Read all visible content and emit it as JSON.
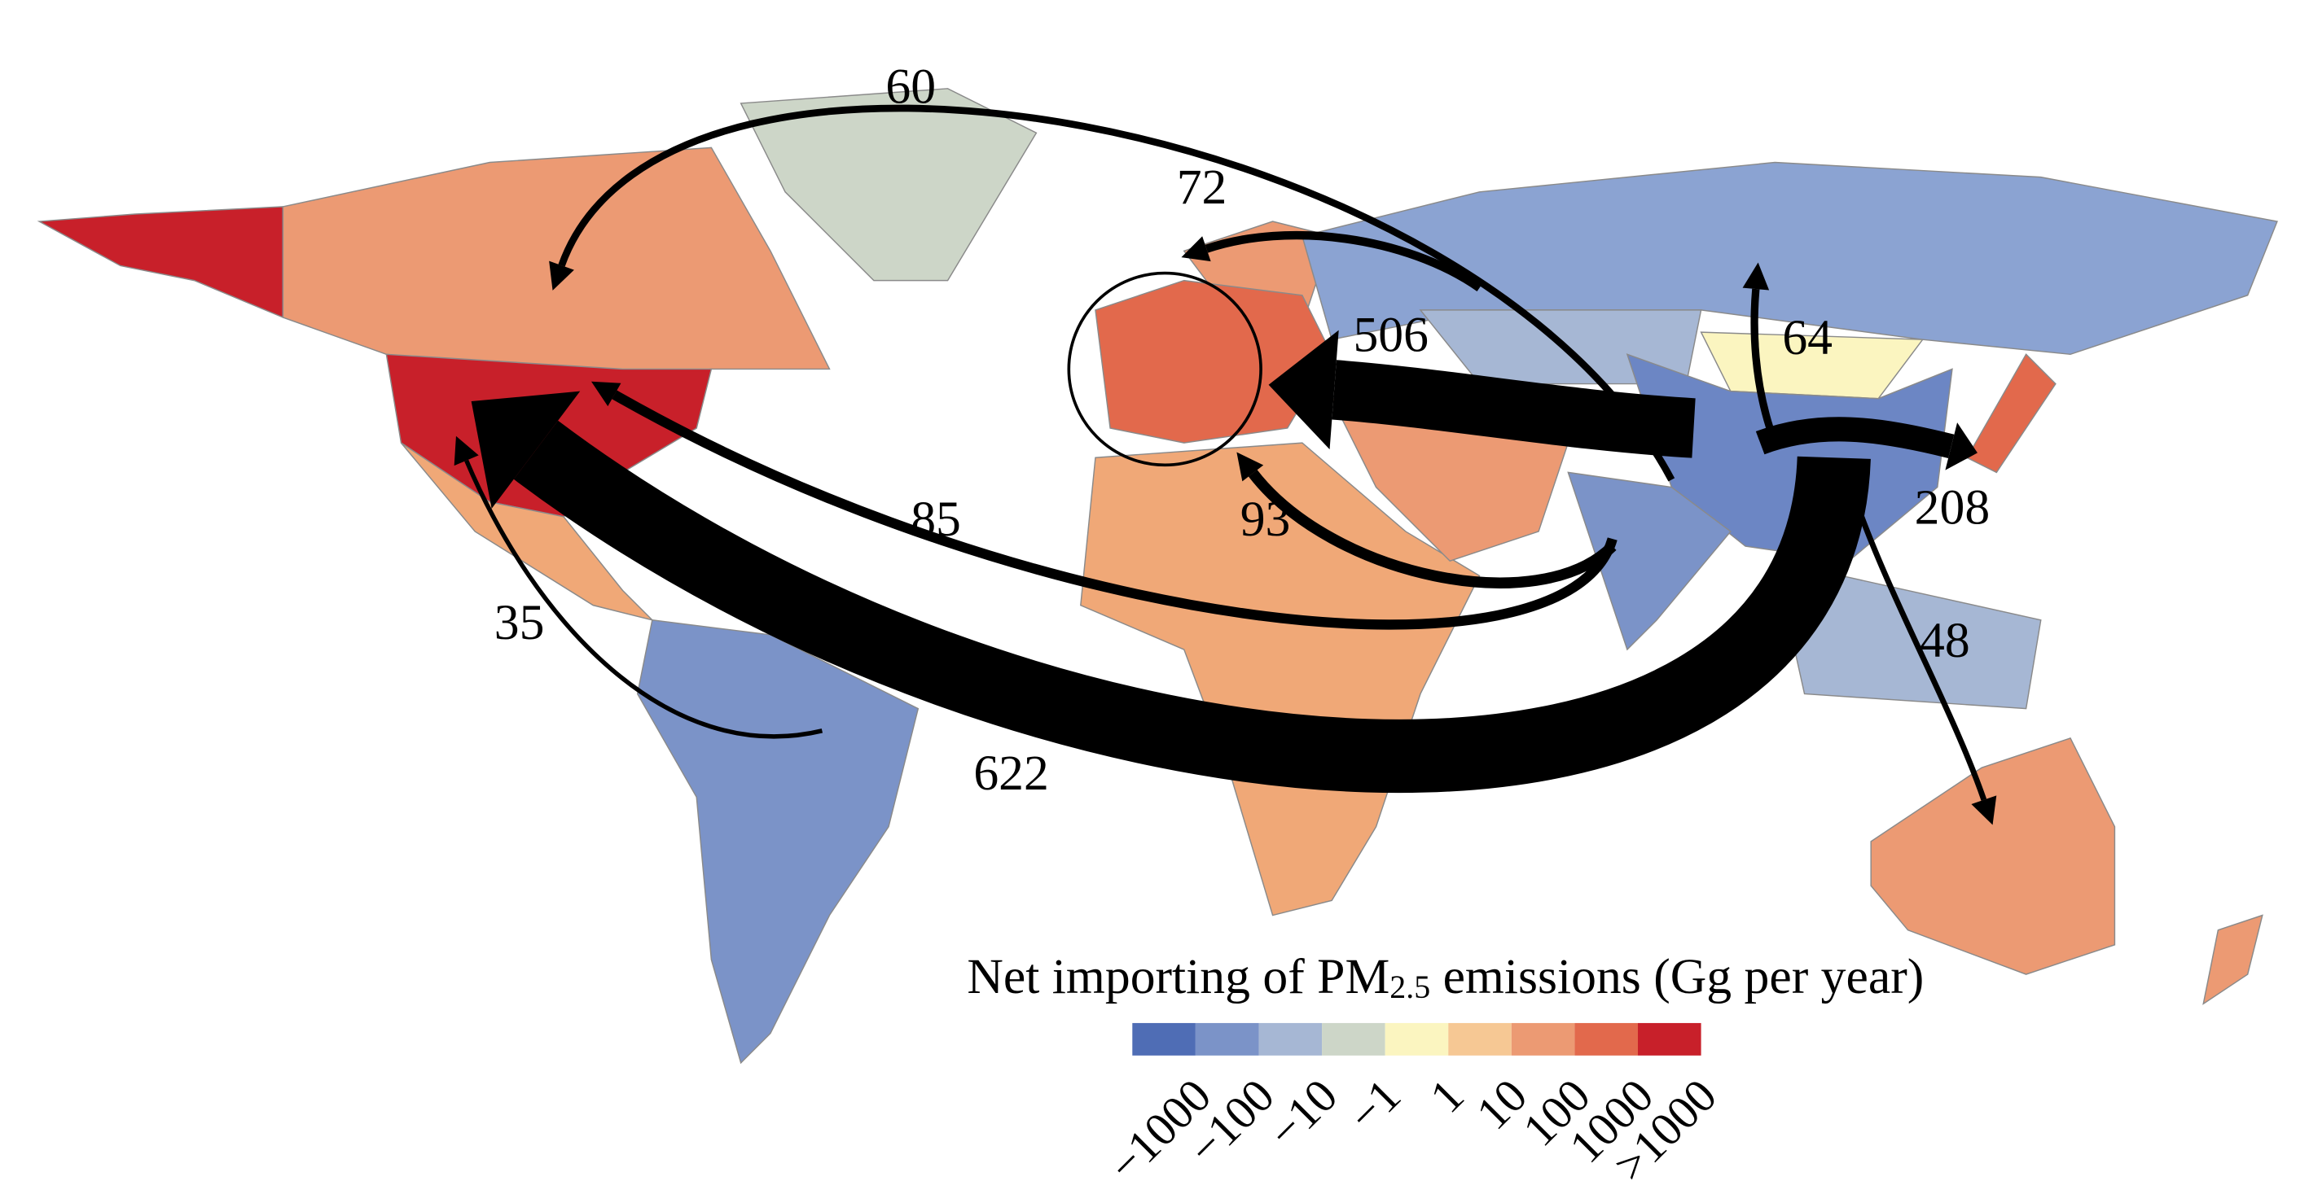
{
  "legend": {
    "title": [
      "Net importing of PM",
      "2.5",
      " emissions (Gg per year)"
    ],
    "labels": [
      "−1000",
      "−100",
      "−10",
      "−1",
      "1",
      "10",
      "100",
      "1000",
      ">1000"
    ],
    "colors": [
      "#4f6db5",
      "#7b93c8",
      "#a6b7d4",
      "#cdd6c8",
      "#fbf5c0",
      "#f6c894",
      "#ec9a73",
      "#e2694c",
      "#c8202a"
    ]
  },
  "flows": [
    {
      "value": 60
    },
    {
      "value": 72
    },
    {
      "value": 506
    },
    {
      "value": 64
    },
    {
      "value": 208
    },
    {
      "value": 48
    },
    {
      "value": 93
    },
    {
      "value": 85
    },
    {
      "value": 35
    },
    {
      "value": 622
    }
  ]
}
